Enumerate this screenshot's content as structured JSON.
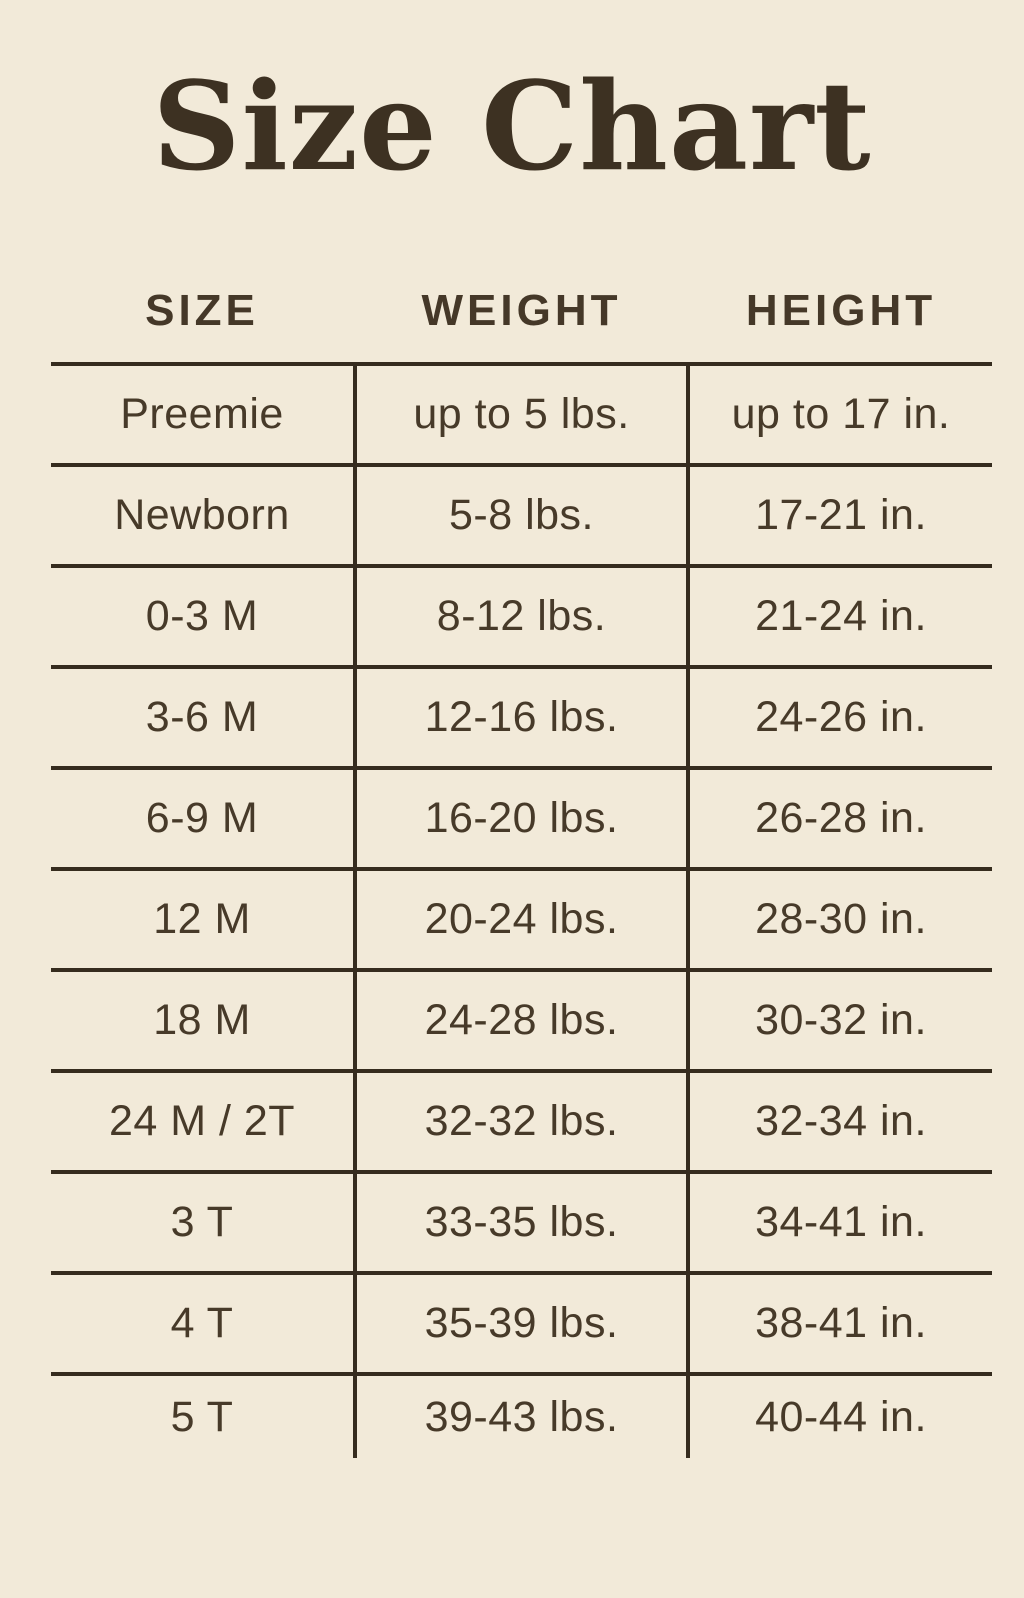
{
  "colors": {
    "background": "#f2ead9",
    "title_text": "#3d3122",
    "table_text": "#473a29",
    "grid_lines": "#362c1e"
  },
  "chart_data": {
    "type": "table",
    "title": "Size Chart",
    "columns": [
      "SIZE",
      "WEIGHT",
      "HEIGHT"
    ],
    "rows": [
      [
        "Preemie",
        "up to 5 lbs.",
        "up to 17 in."
      ],
      [
        "Newborn",
        "5-8 lbs.",
        "17-21 in."
      ],
      [
        "0-3 M",
        "8-12 lbs.",
        "21-24 in."
      ],
      [
        "3-6 M",
        "12-16 lbs.",
        "24-26 in."
      ],
      [
        "6-9 M",
        "16-20 lbs.",
        "26-28 in."
      ],
      [
        "12 M",
        "20-24 lbs.",
        "28-30 in."
      ],
      [
        "18 M",
        "24-28 lbs.",
        "30-32 in."
      ],
      [
        "24 M / 2T",
        "32-32 lbs.",
        "32-34 in."
      ],
      [
        "3 T",
        "33-35 lbs.",
        "34-41 in."
      ],
      [
        "4 T",
        "35-39 lbs.",
        "38-41 in."
      ],
      [
        "5 T",
        "39-43 lbs.",
        "40-44 in."
      ]
    ]
  }
}
